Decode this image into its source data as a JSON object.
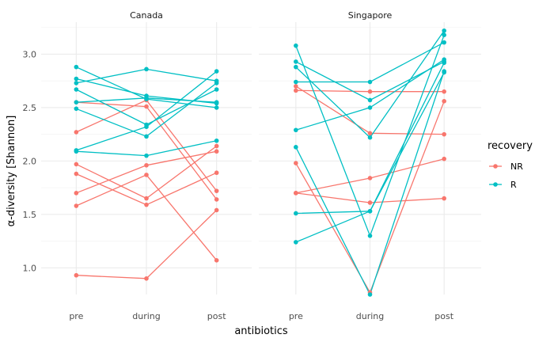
{
  "chart_data": {
    "type": "line",
    "xlabel": "antibiotics",
    "ylabel": "α-diversity [Shannon]",
    "x_categories": [
      "pre",
      "during",
      "post"
    ],
    "ylim": [
      0.75,
      3.3
    ],
    "y_ticks": [
      1.0,
      1.5,
      2.0,
      2.5,
      3.0
    ],
    "y_tick_labels": [
      "1.0",
      "1.5",
      "2.0",
      "2.5",
      "3.0"
    ],
    "grid": true,
    "legend": {
      "title": "recovery",
      "position": "right",
      "items": [
        {
          "label": "NR",
          "color": "#F8766D"
        },
        {
          "label": "R",
          "color": "#00BFC4"
        }
      ]
    },
    "panels": [
      {
        "name": "Canada",
        "series": [
          {
            "group": "NR",
            "values": [
              0.93,
              0.9,
              1.54
            ]
          },
          {
            "group": "NR",
            "values": [
              1.58,
              1.87,
              1.07
            ]
          },
          {
            "group": "NR",
            "values": [
              1.7,
              1.96,
              2.09
            ]
          },
          {
            "group": "NR",
            "values": [
              1.88,
              1.59,
              1.89
            ]
          },
          {
            "group": "NR",
            "values": [
              1.97,
              1.65,
              2.14
            ]
          },
          {
            "group": "NR",
            "values": [
              2.27,
              2.57,
              1.72
            ]
          },
          {
            "group": "NR",
            "values": [
              2.55,
              2.51,
              1.64
            ]
          },
          {
            "group": "R",
            "values": [
              2.88,
              2.58,
              2.5
            ]
          },
          {
            "group": "R",
            "values": [
              2.77,
              2.61,
              2.54
            ]
          },
          {
            "group": "R",
            "values": [
              2.73,
              2.86,
              2.75
            ]
          },
          {
            "group": "R",
            "values": [
              2.67,
              2.34,
              2.67
            ]
          },
          {
            "group": "R",
            "values": [
              2.55,
              2.59,
              2.55
            ]
          },
          {
            "group": "R",
            "values": [
              2.49,
              2.23,
              2.73
            ]
          },
          {
            "group": "R",
            "values": [
              2.1,
              2.32,
              2.84
            ]
          },
          {
            "group": "R",
            "values": [
              2.09,
              2.05,
              2.19
            ]
          }
        ]
      },
      {
        "name": "Singapore",
        "series": [
          {
            "group": "NR",
            "values": [
              2.7,
              2.26,
              2.25
            ]
          },
          {
            "group": "NR",
            "values": [
              2.66,
              2.65,
              2.65
            ]
          },
          {
            "group": "NR",
            "values": [
              1.98,
              0.77,
              2.56
            ]
          },
          {
            "group": "NR",
            "values": [
              1.7,
              1.61,
              1.65
            ]
          },
          {
            "group": "NR",
            "values": [
              1.7,
              1.84,
              2.02
            ]
          },
          {
            "group": "R",
            "values": [
              3.08,
              1.3,
              3.18
            ]
          },
          {
            "group": "R",
            "values": [
              2.93,
              2.57,
              2.93
            ]
          },
          {
            "group": "R",
            "values": [
              2.88,
              2.22,
              3.22
            ]
          },
          {
            "group": "R",
            "values": [
              2.74,
              2.74,
              3.11
            ]
          },
          {
            "group": "R",
            "values": [
              2.29,
              2.5,
              2.95
            ]
          },
          {
            "group": "R",
            "values": [
              2.13,
              0.75,
              2.84
            ]
          },
          {
            "group": "R",
            "values": [
              1.51,
              1.53,
              2.83
            ]
          },
          {
            "group": "R",
            "values": [
              1.24,
              1.53,
              2.92
            ]
          }
        ]
      }
    ]
  }
}
